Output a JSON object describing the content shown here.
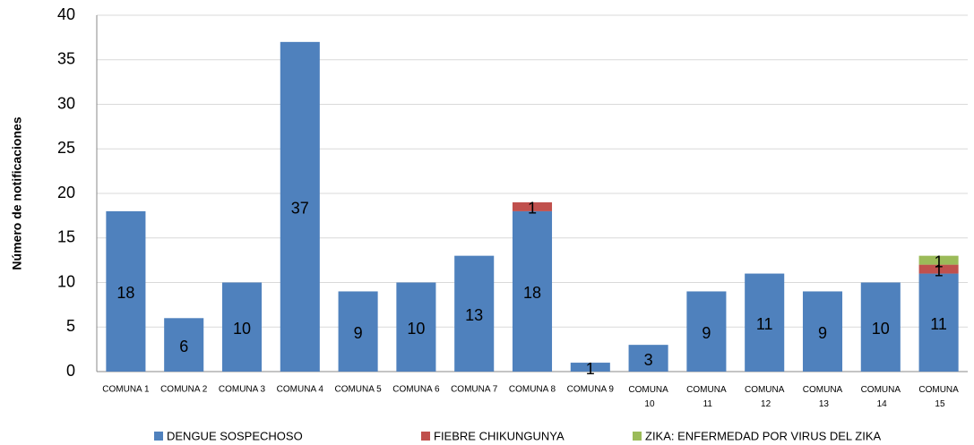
{
  "chart_data": {
    "type": "stacked_bar",
    "y_label": "Número de notificaciones",
    "categories": [
      "COMUNA 1",
      "COMUNA 2",
      "COMUNA 3",
      "COMUNA 4",
      "COMUNA 5",
      "COMUNA 6",
      "COMUNA 7",
      "COMUNA 8",
      "COMUNA 9",
      "COMUNA 10",
      "COMUNA 11",
      "COMUNA 12",
      "COMUNA 13",
      "COMUNA 14",
      "COMUNA 15"
    ],
    "series": [
      {
        "name": "DENGUE SOSPECHOSO",
        "color": "#4f81bd",
        "values": [
          18,
          6,
          10,
          37,
          9,
          10,
          13,
          18,
          1,
          3,
          9,
          11,
          9,
          10,
          11
        ]
      },
      {
        "name": "FIEBRE CHIKUNGUNYA",
        "color": "#c0504d",
        "values": [
          0,
          0,
          0,
          0,
          0,
          0,
          0,
          1,
          0,
          0,
          0,
          0,
          0,
          0,
          1
        ]
      },
      {
        "name": "ZIKA: ENFERMEDAD POR VIRUS DEL ZIKA",
        "color": "#9bbb59",
        "values": [
          0,
          0,
          0,
          0,
          0,
          0,
          0,
          0,
          0,
          0,
          0,
          0,
          0,
          0,
          1
        ]
      }
    ],
    "ylim": [
      0,
      40
    ],
    "yticks": [
      0,
      5,
      10,
      15,
      20,
      25,
      30,
      35,
      40
    ],
    "grid": true,
    "legend": "bottom"
  }
}
